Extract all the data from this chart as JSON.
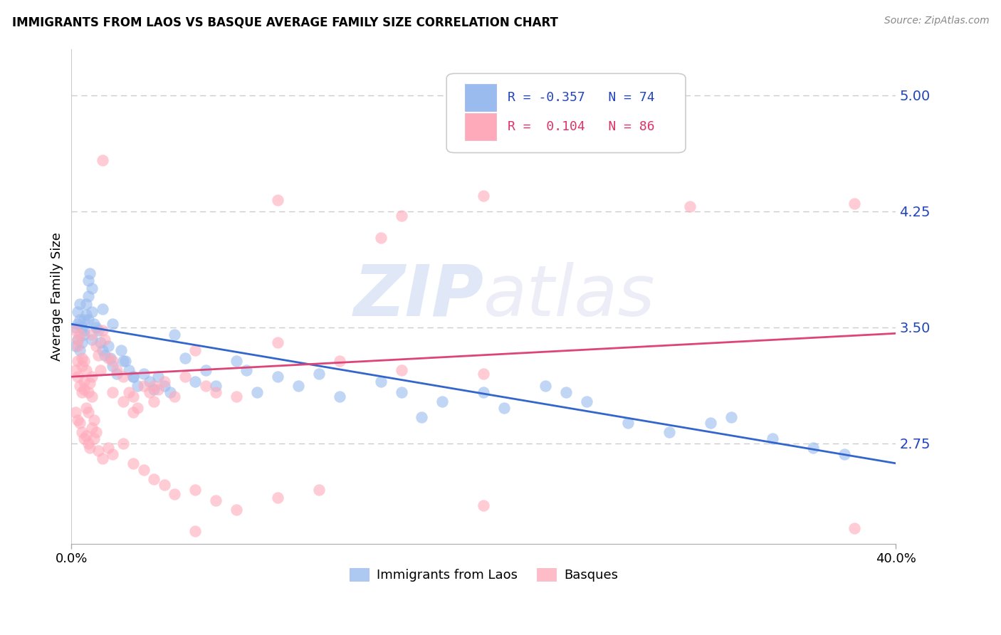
{
  "title": "IMMIGRANTS FROM LAOS VS BASQUE AVERAGE FAMILY SIZE CORRELATION CHART",
  "source": "Source: ZipAtlas.com",
  "ylabel": "Average Family Size",
  "right_yticks": [
    2.75,
    3.5,
    4.25,
    5.0
  ],
  "xlim": [
    0.0,
    0.4
  ],
  "ylim": [
    2.1,
    5.3
  ],
  "legend1_R": "-0.357",
  "legend1_N": "74",
  "legend2_R": "0.104",
  "legend2_N": "86",
  "blue_color": "#99bbee",
  "pink_color": "#ffaabb",
  "blue_line_color": "#3366cc",
  "pink_line_color": "#dd4477",
  "blue_line": [
    [
      0.0,
      3.52
    ],
    [
      0.4,
      2.62
    ]
  ],
  "pink_line": [
    [
      0.0,
      3.18
    ],
    [
      0.4,
      3.46
    ]
  ],
  "blue_scatter": [
    [
      0.002,
      3.5
    ],
    [
      0.003,
      3.52
    ],
    [
      0.003,
      3.6
    ],
    [
      0.004,
      3.55
    ],
    [
      0.004,
      3.65
    ],
    [
      0.005,
      3.4
    ],
    [
      0.005,
      3.5
    ],
    [
      0.006,
      3.45
    ],
    [
      0.006,
      3.55
    ],
    [
      0.007,
      3.58
    ],
    [
      0.007,
      3.65
    ],
    [
      0.008,
      3.7
    ],
    [
      0.008,
      3.8
    ],
    [
      0.009,
      3.85
    ],
    [
      0.01,
      3.75
    ],
    [
      0.01,
      3.6
    ],
    [
      0.011,
      3.52
    ],
    [
      0.012,
      3.5
    ],
    [
      0.013,
      3.48
    ],
    [
      0.014,
      3.4
    ],
    [
      0.015,
      3.35
    ],
    [
      0.016,
      3.32
    ],
    [
      0.018,
      3.38
    ],
    [
      0.019,
      3.3
    ],
    [
      0.02,
      3.25
    ],
    [
      0.022,
      3.2
    ],
    [
      0.024,
      3.35
    ],
    [
      0.026,
      3.28
    ],
    [
      0.028,
      3.22
    ],
    [
      0.03,
      3.18
    ],
    [
      0.032,
      3.12
    ],
    [
      0.035,
      3.2
    ],
    [
      0.038,
      3.15
    ],
    [
      0.04,
      3.1
    ],
    [
      0.042,
      3.18
    ],
    [
      0.045,
      3.12
    ],
    [
      0.048,
      3.08
    ],
    [
      0.05,
      3.45
    ],
    [
      0.055,
      3.3
    ],
    [
      0.06,
      3.15
    ],
    [
      0.065,
      3.22
    ],
    [
      0.07,
      3.12
    ],
    [
      0.08,
      3.28
    ],
    [
      0.085,
      3.22
    ],
    [
      0.09,
      3.08
    ],
    [
      0.1,
      3.18
    ],
    [
      0.11,
      3.12
    ],
    [
      0.12,
      3.2
    ],
    [
      0.13,
      3.05
    ],
    [
      0.15,
      3.15
    ],
    [
      0.16,
      3.08
    ],
    [
      0.17,
      2.92
    ],
    [
      0.18,
      3.02
    ],
    [
      0.2,
      3.08
    ],
    [
      0.21,
      2.98
    ],
    [
      0.23,
      3.12
    ],
    [
      0.24,
      3.08
    ],
    [
      0.25,
      3.02
    ],
    [
      0.27,
      2.88
    ],
    [
      0.29,
      2.82
    ],
    [
      0.31,
      2.88
    ],
    [
      0.32,
      2.92
    ],
    [
      0.34,
      2.78
    ],
    [
      0.36,
      2.72
    ],
    [
      0.375,
      2.68
    ],
    [
      0.002,
      3.38
    ],
    [
      0.003,
      3.42
    ],
    [
      0.004,
      3.35
    ],
    [
      0.006,
      3.48
    ],
    [
      0.008,
      3.55
    ],
    [
      0.01,
      3.42
    ],
    [
      0.015,
      3.62
    ],
    [
      0.02,
      3.52
    ],
    [
      0.025,
      3.28
    ],
    [
      0.03,
      3.18
    ]
  ],
  "pink_scatter": [
    [
      0.002,
      3.22
    ],
    [
      0.003,
      3.18
    ],
    [
      0.003,
      3.28
    ],
    [
      0.004,
      3.12
    ],
    [
      0.005,
      3.08
    ],
    [
      0.005,
      3.25
    ],
    [
      0.006,
      3.15
    ],
    [
      0.006,
      3.1
    ],
    [
      0.007,
      3.22
    ],
    [
      0.007,
      2.98
    ],
    [
      0.008,
      3.08
    ],
    [
      0.008,
      2.95
    ],
    [
      0.009,
      3.14
    ],
    [
      0.01,
      3.18
    ],
    [
      0.01,
      3.05
    ],
    [
      0.011,
      2.9
    ],
    [
      0.012,
      3.38
    ],
    [
      0.013,
      3.32
    ],
    [
      0.014,
      3.22
    ],
    [
      0.015,
      3.48
    ],
    [
      0.016,
      3.42
    ],
    [
      0.018,
      3.3
    ],
    [
      0.02,
      3.28
    ],
    [
      0.02,
      3.08
    ],
    [
      0.022,
      3.22
    ],
    [
      0.025,
      3.18
    ],
    [
      0.025,
      3.02
    ],
    [
      0.028,
      3.08
    ],
    [
      0.03,
      3.05
    ],
    [
      0.03,
      2.95
    ],
    [
      0.032,
      2.98
    ],
    [
      0.035,
      3.12
    ],
    [
      0.038,
      3.08
    ],
    [
      0.04,
      3.02
    ],
    [
      0.042,
      3.1
    ],
    [
      0.045,
      3.15
    ],
    [
      0.05,
      3.05
    ],
    [
      0.055,
      3.18
    ],
    [
      0.06,
      3.35
    ],
    [
      0.06,
      2.18
    ],
    [
      0.065,
      3.12
    ],
    [
      0.07,
      3.08
    ],
    [
      0.08,
      3.05
    ],
    [
      0.1,
      3.4
    ],
    [
      0.13,
      3.28
    ],
    [
      0.16,
      3.22
    ],
    [
      0.2,
      3.2
    ],
    [
      0.002,
      2.95
    ],
    [
      0.003,
      2.9
    ],
    [
      0.004,
      2.88
    ],
    [
      0.005,
      2.82
    ],
    [
      0.006,
      2.78
    ],
    [
      0.007,
      2.8
    ],
    [
      0.008,
      2.75
    ],
    [
      0.009,
      2.72
    ],
    [
      0.01,
      2.85
    ],
    [
      0.011,
      2.78
    ],
    [
      0.012,
      2.82
    ],
    [
      0.013,
      2.7
    ],
    [
      0.015,
      2.65
    ],
    [
      0.018,
      2.72
    ],
    [
      0.02,
      2.68
    ],
    [
      0.025,
      2.75
    ],
    [
      0.03,
      2.62
    ],
    [
      0.035,
      2.58
    ],
    [
      0.04,
      2.52
    ],
    [
      0.045,
      2.48
    ],
    [
      0.05,
      2.42
    ],
    [
      0.06,
      2.45
    ],
    [
      0.07,
      2.38
    ],
    [
      0.08,
      2.32
    ],
    [
      0.1,
      2.4
    ],
    [
      0.12,
      2.45
    ],
    [
      0.2,
      2.35
    ],
    [
      0.38,
      2.2
    ],
    [
      0.015,
      4.58
    ],
    [
      0.1,
      4.32
    ],
    [
      0.15,
      4.08
    ],
    [
      0.16,
      4.22
    ],
    [
      0.2,
      4.35
    ],
    [
      0.3,
      4.28
    ],
    [
      0.38,
      4.3
    ],
    [
      0.01,
      3.45
    ],
    [
      0.002,
      3.48
    ],
    [
      0.003,
      3.42
    ],
    [
      0.003,
      3.38
    ],
    [
      0.004,
      3.45
    ],
    [
      0.005,
      3.3
    ],
    [
      0.006,
      3.28
    ],
    [
      0.04,
      3.12
    ]
  ],
  "watermark": "ZIPatlas",
  "legend_color": "#2244bb"
}
